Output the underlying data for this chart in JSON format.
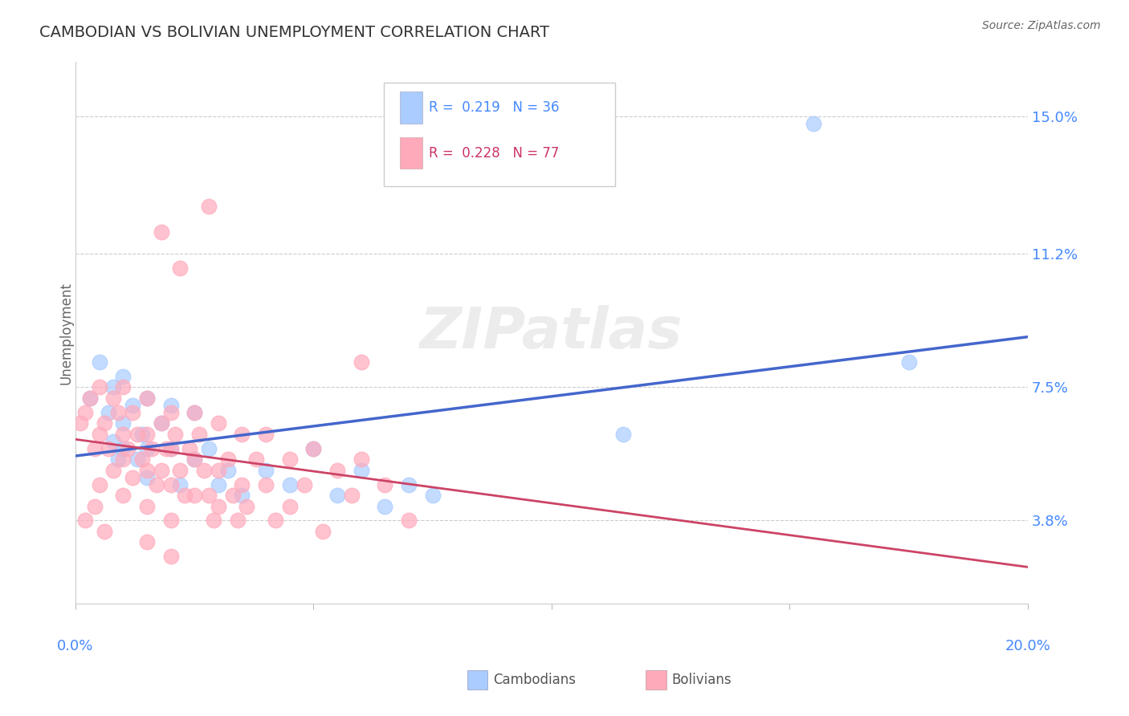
{
  "title": "CAMBODIAN VS BOLIVIAN UNEMPLOYMENT CORRELATION CHART",
  "source": "Source: ZipAtlas.com",
  "ylabel": "Unemployment",
  "yticks": [
    0.038,
    0.075,
    0.112,
    0.15
  ],
  "ytick_labels": [
    "3.8%",
    "7.5%",
    "11.2%",
    "15.0%"
  ],
  "xmin": 0.0,
  "xmax": 0.2,
  "ymin": 0.015,
  "ymax": 0.165,
  "cambodian_color": "#aaccff",
  "bolivian_color": "#ffaabb",
  "cambodian_line_color": "#4466cc",
  "bolivian_line_color": "#cc4466",
  "legend_R_cambodian": "0.219",
  "legend_N_cambodian": "36",
  "legend_R_bolivian": "0.228",
  "legend_N_bolivian": "77",
  "watermark": "ZIPatlas",
  "cambodian_scatter": [
    [
      0.003,
      0.072
    ],
    [
      0.005,
      0.082
    ],
    [
      0.007,
      0.068
    ],
    [
      0.008,
      0.06
    ],
    [
      0.008,
      0.075
    ],
    [
      0.009,
      0.055
    ],
    [
      0.01,
      0.078
    ],
    [
      0.01,
      0.065
    ],
    [
      0.01,
      0.058
    ],
    [
      0.012,
      0.07
    ],
    [
      0.013,
      0.055
    ],
    [
      0.014,
      0.062
    ],
    [
      0.015,
      0.072
    ],
    [
      0.015,
      0.058
    ],
    [
      0.015,
      0.05
    ],
    [
      0.018,
      0.065
    ],
    [
      0.02,
      0.07
    ],
    [
      0.02,
      0.058
    ],
    [
      0.022,
      0.048
    ],
    [
      0.025,
      0.068
    ],
    [
      0.025,
      0.055
    ],
    [
      0.028,
      0.058
    ],
    [
      0.03,
      0.048
    ],
    [
      0.032,
      0.052
    ],
    [
      0.035,
      0.045
    ],
    [
      0.04,
      0.052
    ],
    [
      0.045,
      0.048
    ],
    [
      0.05,
      0.058
    ],
    [
      0.055,
      0.045
    ],
    [
      0.06,
      0.052
    ],
    [
      0.065,
      0.042
    ],
    [
      0.07,
      0.048
    ],
    [
      0.075,
      0.045
    ],
    [
      0.115,
      0.062
    ],
    [
      0.155,
      0.148
    ],
    [
      0.175,
      0.082
    ]
  ],
  "bolivian_scatter": [
    [
      0.001,
      0.065
    ],
    [
      0.002,
      0.068
    ],
    [
      0.003,
      0.072
    ],
    [
      0.004,
      0.058
    ],
    [
      0.005,
      0.075
    ],
    [
      0.005,
      0.062
    ],
    [
      0.005,
      0.048
    ],
    [
      0.006,
      0.065
    ],
    [
      0.007,
      0.058
    ],
    [
      0.008,
      0.072
    ],
    [
      0.008,
      0.052
    ],
    [
      0.009,
      0.068
    ],
    [
      0.01,
      0.075
    ],
    [
      0.01,
      0.062
    ],
    [
      0.01,
      0.055
    ],
    [
      0.01,
      0.045
    ],
    [
      0.011,
      0.058
    ],
    [
      0.012,
      0.068
    ],
    [
      0.012,
      0.05
    ],
    [
      0.013,
      0.062
    ],
    [
      0.014,
      0.055
    ],
    [
      0.015,
      0.072
    ],
    [
      0.015,
      0.062
    ],
    [
      0.015,
      0.052
    ],
    [
      0.015,
      0.042
    ],
    [
      0.016,
      0.058
    ],
    [
      0.017,
      0.048
    ],
    [
      0.018,
      0.065
    ],
    [
      0.018,
      0.052
    ],
    [
      0.019,
      0.058
    ],
    [
      0.02,
      0.068
    ],
    [
      0.02,
      0.058
    ],
    [
      0.02,
      0.048
    ],
    [
      0.02,
      0.038
    ],
    [
      0.021,
      0.062
    ],
    [
      0.022,
      0.052
    ],
    [
      0.023,
      0.045
    ],
    [
      0.024,
      0.058
    ],
    [
      0.025,
      0.068
    ],
    [
      0.025,
      0.055
    ],
    [
      0.025,
      0.045
    ],
    [
      0.026,
      0.062
    ],
    [
      0.027,
      0.052
    ],
    [
      0.028,
      0.045
    ],
    [
      0.029,
      0.038
    ],
    [
      0.03,
      0.065
    ],
    [
      0.03,
      0.052
    ],
    [
      0.03,
      0.042
    ],
    [
      0.032,
      0.055
    ],
    [
      0.033,
      0.045
    ],
    [
      0.034,
      0.038
    ],
    [
      0.035,
      0.062
    ],
    [
      0.035,
      0.048
    ],
    [
      0.036,
      0.042
    ],
    [
      0.038,
      0.055
    ],
    [
      0.04,
      0.062
    ],
    [
      0.04,
      0.048
    ],
    [
      0.042,
      0.038
    ],
    [
      0.045,
      0.055
    ],
    [
      0.045,
      0.042
    ],
    [
      0.048,
      0.048
    ],
    [
      0.05,
      0.058
    ],
    [
      0.052,
      0.035
    ],
    [
      0.055,
      0.052
    ],
    [
      0.058,
      0.045
    ],
    [
      0.06,
      0.055
    ],
    [
      0.065,
      0.048
    ],
    [
      0.07,
      0.038
    ],
    [
      0.018,
      0.118
    ],
    [
      0.022,
      0.108
    ],
    [
      0.028,
      0.125
    ],
    [
      0.06,
      0.082
    ],
    [
      0.002,
      0.038
    ],
    [
      0.004,
      0.042
    ],
    [
      0.006,
      0.035
    ],
    [
      0.015,
      0.032
    ],
    [
      0.02,
      0.028
    ]
  ]
}
